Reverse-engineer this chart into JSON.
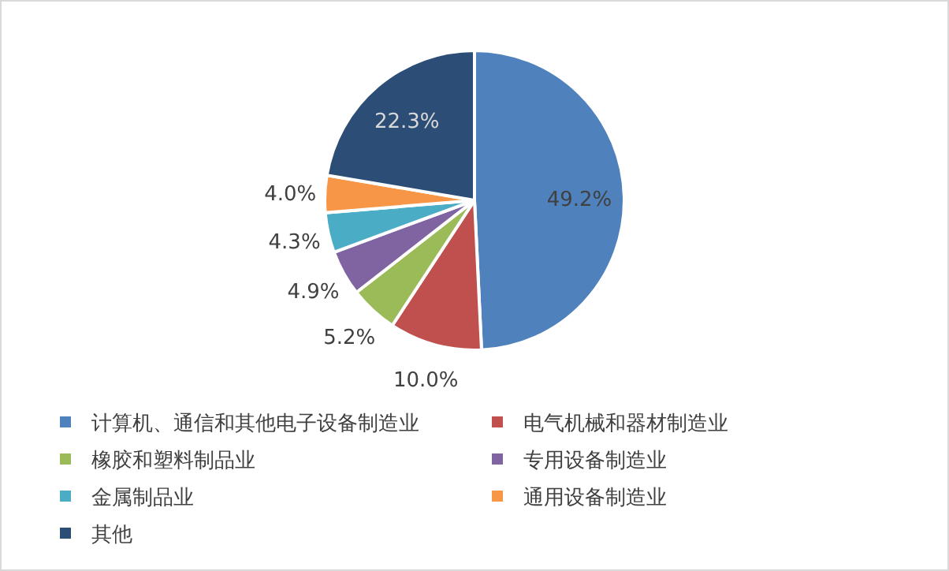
{
  "chart_data": {
    "type": "pie",
    "categories": [
      "计算机、通信和其他电子设备制造业",
      "电气机械和器材制造业",
      "橡胶和塑料制品业",
      "专用设备制造业",
      "金属制品业",
      "通用设备制造业",
      "其他"
    ],
    "values": [
      49.2,
      10.0,
      5.2,
      4.9,
      4.3,
      4.0,
      22.3
    ],
    "value_labels": [
      "49.2%",
      "10.0%",
      "5.2%",
      "4.9%",
      "4.3%",
      "4.0%",
      "22.3%"
    ],
    "colors": [
      "#4f81bd",
      "#c0504d",
      "#9bbb59",
      "#8064a2",
      "#4bacc6",
      "#f79646",
      "#2c4d75"
    ],
    "legend": "bottom"
  }
}
